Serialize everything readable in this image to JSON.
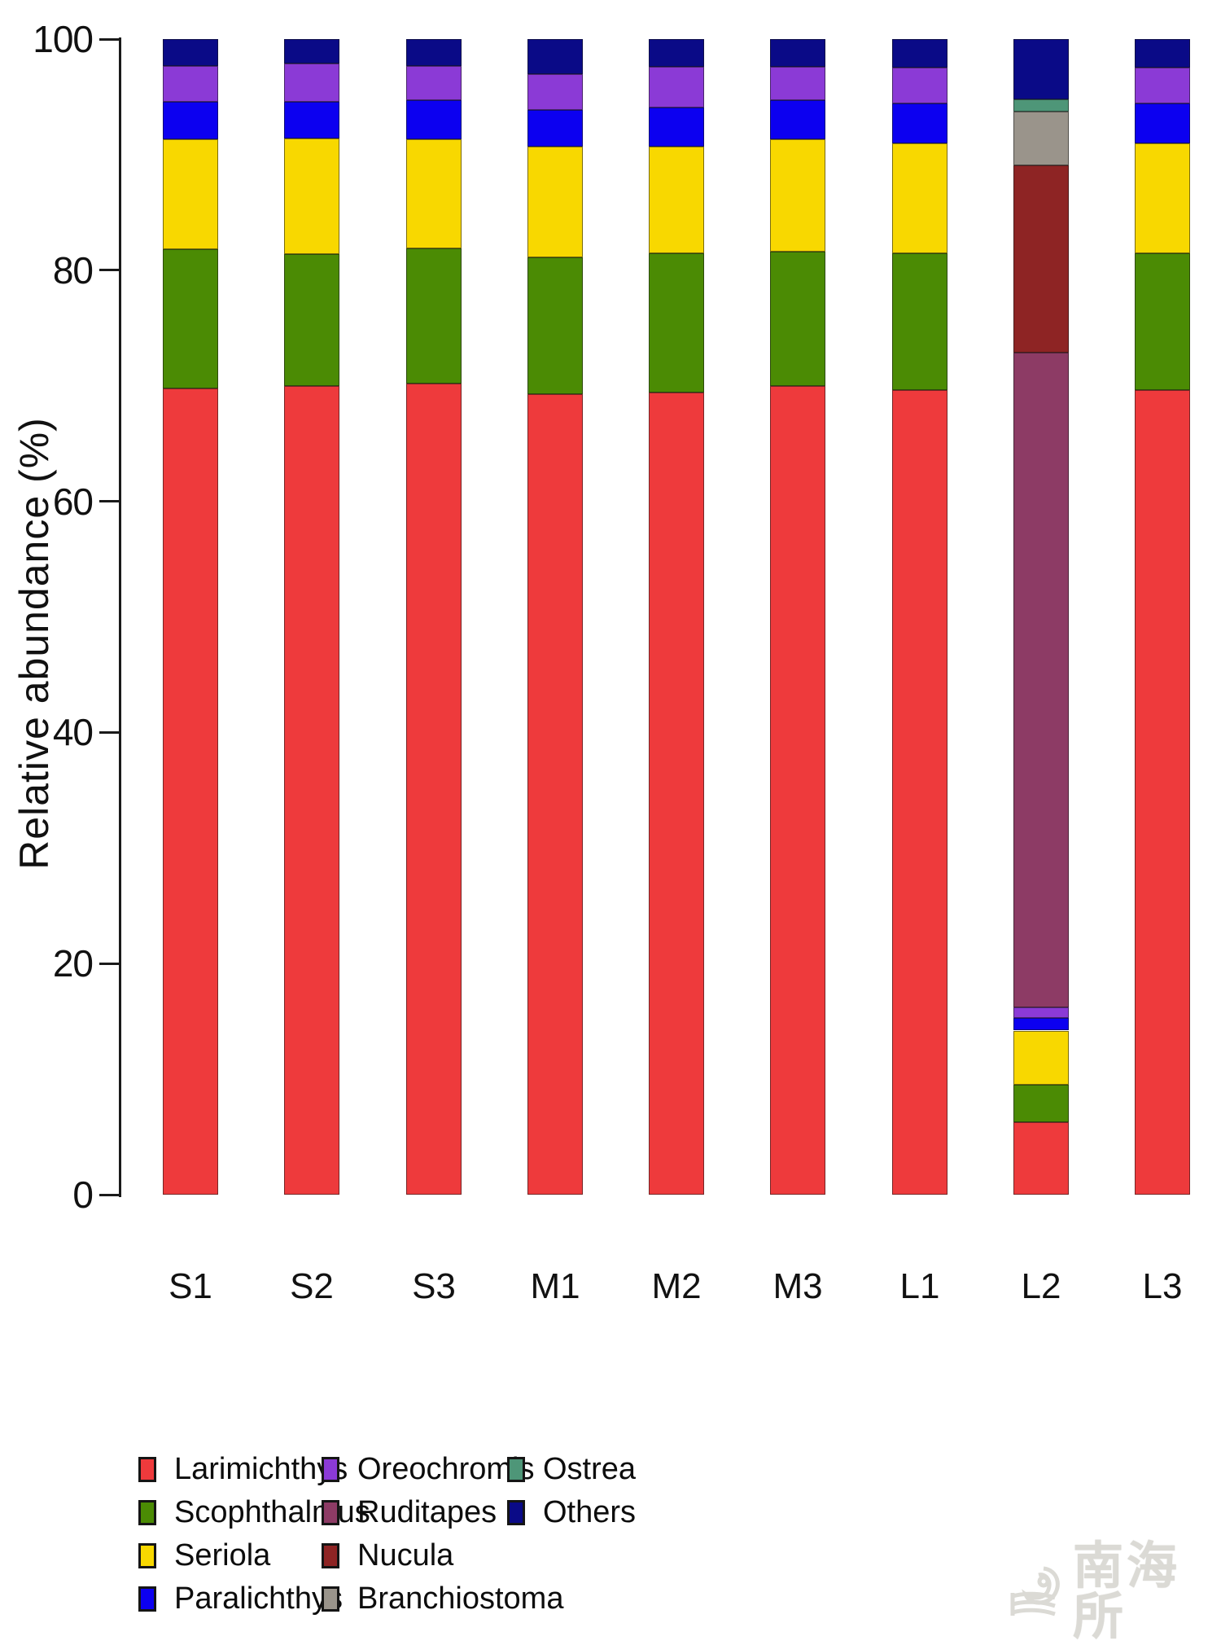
{
  "figure": {
    "watermark": "南海所"
  },
  "chart_data": {
    "type": "bar",
    "stacked": true,
    "title": "",
    "xlabel": "",
    "ylabel": "Relative abundance (%)",
    "ylim": [
      0,
      100
    ],
    "yticks": [
      0,
      20,
      40,
      60,
      80,
      100
    ],
    "grid": false,
    "legend_position": "bottom",
    "categories": [
      "S1",
      "S2",
      "S3",
      "M1",
      "M2",
      "M3",
      "L1",
      "L2",
      "L3"
    ],
    "series": [
      {
        "name": "Larimichthys",
        "color": "#ee3a3c",
        "values": [
          69.8,
          70.0,
          70.2,
          69.3,
          69.4,
          70.0,
          69.6,
          6.3,
          69.6
        ]
      },
      {
        "name": "Scophthalmus",
        "color": "#4b8b04",
        "values": [
          12.0,
          11.4,
          11.7,
          11.8,
          12.1,
          11.6,
          11.9,
          3.2,
          11.9
        ]
      },
      {
        "name": "Seriola",
        "color": "#f8d800",
        "values": [
          9.5,
          10.0,
          9.4,
          9.6,
          9.2,
          9.7,
          9.5,
          4.7,
          9.5
        ]
      },
      {
        "name": "Paralichthys",
        "color": "#0c00f0",
        "values": [
          3.3,
          3.2,
          3.4,
          3.2,
          3.4,
          3.4,
          3.4,
          1.1,
          3.4
        ]
      },
      {
        "name": "Oreochromis",
        "color": "#8b3ad6",
        "values": [
          3.1,
          3.3,
          3.0,
          3.1,
          3.5,
          2.9,
          3.1,
          0.9,
          3.1
        ]
      },
      {
        "name": "Ruditapes",
        "color": "#8d3b65",
        "values": [
          0,
          0,
          0,
          0,
          0,
          0,
          0,
          56.7,
          0
        ]
      },
      {
        "name": "Nucula",
        "color": "#8e2424",
        "values": [
          0,
          0,
          0,
          0,
          0,
          0,
          0,
          16.2,
          0
        ]
      },
      {
        "name": "Branchiostoma",
        "color": "#9a948b",
        "values": [
          0,
          0,
          0,
          0,
          0,
          0,
          0,
          4.6,
          0
        ]
      },
      {
        "name": "Ostrea",
        "color": "#4e9678",
        "values": [
          0,
          0,
          0,
          0,
          0,
          0,
          0,
          1.1,
          0
        ]
      },
      {
        "name": "Others",
        "color": "#0a0a87",
        "values": [
          2.3,
          2.1,
          2.3,
          3.0,
          2.4,
          2.4,
          2.5,
          5.2,
          2.5
        ]
      }
    ],
    "legend_column_sizes": [
      4,
      4,
      2
    ]
  }
}
